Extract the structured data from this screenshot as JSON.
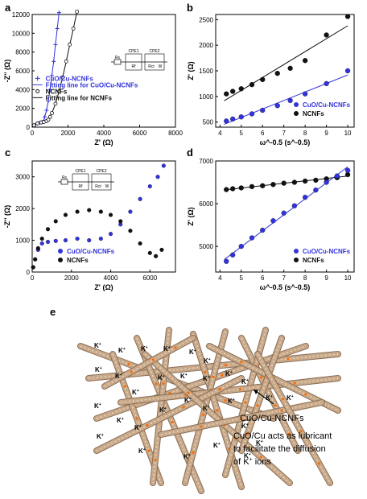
{
  "chart_data": [
    {
      "panel": "a",
      "type": "scatter",
      "xlabel": "Z' (Ω)",
      "ylabel": "-Z'' (Ω)",
      "xlim": [
        0,
        8000
      ],
      "ylim": [
        0,
        12000
      ],
      "xticks": [
        "0",
        "2000",
        "4000",
        "6000",
        "8000"
      ],
      "yticks": [
        "0",
        "2000",
        "4000",
        "6000",
        "8000",
        "10000",
        "12000"
      ],
      "inset": {
        "labels": [
          "CPE1",
          "CPE2",
          "Rs",
          "Rf",
          "Rct",
          "W"
        ]
      },
      "legend": [
        "CuO/Cu-NCNFs",
        "Fitting line for CuO/Cu-NCNFs",
        "NCNFs",
        "Fitting line for NCNFs"
      ],
      "series": [
        {
          "name": "CuO/Cu-NCNFs",
          "color": "#3333dd",
          "x": [
            100,
            200,
            300,
            400,
            500,
            600,
            650,
            700,
            800,
            900,
            1000,
            1100,
            1200,
            1300,
            1400,
            1500
          ],
          "y": [
            200,
            300,
            400,
            450,
            500,
            550,
            700,
            1100,
            1800,
            2800,
            4000,
            5500,
            7000,
            8800,
            10500,
            12200
          ]
        },
        {
          "name": "NCNFs",
          "color": "#111111",
          "x": [
            100,
            300,
            500,
            650,
            800,
            900,
            1000,
            1100,
            1300,
            1500,
            1700,
            1900,
            2100,
            2300,
            2500
          ],
          "y": [
            200,
            400,
            500,
            550,
            650,
            800,
            1100,
            1500,
            2500,
            3800,
            5300,
            7000,
            8800,
            10500,
            12300
          ]
        }
      ]
    },
    {
      "panel": "b",
      "type": "scatter",
      "xlabel": "ω^-0.5 (s^-0.5)",
      "ylabel": "Z' (Ω)",
      "xlim": [
        3.8,
        10.3
      ],
      "ylim": [
        400,
        2600
      ],
      "xticks": [
        "4",
        "5",
        "6",
        "7",
        "8",
        "9",
        "10"
      ],
      "yticks": [
        "500",
        "1000",
        "1500",
        "2000",
        "2500"
      ],
      "legend": [
        "CuO/Cu-NCNFs",
        "NCNFs"
      ],
      "series": [
        {
          "name": "NCNFs",
          "color": "#111111",
          "x": [
            4.3,
            4.6,
            5.0,
            5.5,
            6.0,
            6.7,
            7.3,
            8.0,
            9.0,
            10.0
          ],
          "y": [
            1050,
            1100,
            1150,
            1230,
            1330,
            1450,
            1550,
            1700,
            2200,
            2560
          ]
        },
        {
          "name": "CuO/Cu-NCNFs",
          "color": "#3333dd",
          "x": [
            4.3,
            4.6,
            5.0,
            5.5,
            6.0,
            6.7,
            7.3,
            8.0,
            9.0,
            10.0
          ],
          "y": [
            520,
            560,
            600,
            660,
            730,
            820,
            920,
            1050,
            1250,
            1500
          ]
        }
      ]
    },
    {
      "panel": "c",
      "type": "scatter",
      "xlabel": "Z' (Ω)",
      "ylabel": "-Z'' (Ω)",
      "xlim": [
        0,
        7300
      ],
      "ylim": [
        0,
        3500
      ],
      "xticks": [
        "0",
        "2000",
        "4000",
        "6000"
      ],
      "yticks": [
        "0",
        "1000",
        "2000",
        "3000"
      ],
      "inset": {
        "labels": [
          "CPE1",
          "CPE2",
          "Rs",
          "Rf",
          "Rct",
          "W"
        ]
      },
      "legend": [
        "CuO/Cu-NCNFs",
        "NCNFs"
      ],
      "series": [
        {
          "name": "CuO/Cu-NCNFs",
          "color": "#3333dd",
          "x": [
            50,
            150,
            300,
            500,
            800,
            1200,
            1700,
            2300,
            2900,
            3500,
            4000,
            4500,
            5000,
            5500,
            6000,
            6400,
            6700
          ],
          "y": [
            150,
            400,
            700,
            900,
            950,
            980,
            1000,
            1050,
            1000,
            1050,
            1200,
            1500,
            1900,
            2300,
            2700,
            3000,
            3350
          ]
        },
        {
          "name": "NCNFs",
          "color": "#111111",
          "x": [
            50,
            150,
            300,
            500,
            800,
            1200,
            1700,
            2300,
            2900,
            3500,
            4000,
            4500,
            5000,
            5500,
            6000,
            6300,
            6600
          ],
          "y": [
            150,
            400,
            750,
            1050,
            1350,
            1600,
            1800,
            1900,
            1950,
            1900,
            1800,
            1600,
            1300,
            900,
            600,
            500,
            700
          ]
        }
      ]
    },
    {
      "panel": "d",
      "type": "scatter",
      "xlabel": "ω^-0.5 (s^-0.5)",
      "ylabel": "Z' (Ω)",
      "xlim": [
        3.8,
        10.3
      ],
      "ylim": [
        4400,
        7000
      ],
      "xticks": [
        "4",
        "5",
        "6",
        "7",
        "8",
        "9",
        "10"
      ],
      "yticks": [
        "5000",
        "6000",
        "7000"
      ],
      "legend": [
        "CuO/Cu-NCNFs",
        "NCNFs"
      ],
      "series": [
        {
          "name": "NCNFs",
          "color": "#111111",
          "x": [
            4.3,
            4.6,
            5.0,
            5.5,
            6.0,
            6.5,
            7.0,
            7.5,
            8.0,
            8.5,
            9.0,
            9.5,
            10.0
          ],
          "y": [
            6330,
            6350,
            6370,
            6400,
            6420,
            6450,
            6480,
            6500,
            6530,
            6550,
            6580,
            6610,
            6680
          ]
        },
        {
          "name": "CuO/Cu-NCNFs",
          "color": "#3333dd",
          "x": [
            4.3,
            4.6,
            5.0,
            5.5,
            6.0,
            6.5,
            7.0,
            7.5,
            8.0,
            8.5,
            9.0,
            9.5,
            10.0
          ],
          "y": [
            4650,
            4800,
            5000,
            5200,
            5380,
            5600,
            5780,
            5950,
            6150,
            6320,
            6500,
            6650,
            6780
          ]
        }
      ]
    }
  ],
  "panel_e": {
    "label": "e",
    "caption_line1": "CuO/Cu-NCNFs",
    "caption_line2": "CuO/Cu acts as lubricant",
    "caption_line3": "to facilitate the diffusion",
    "caption_line4": "of K+ ions",
    "ion_label": "K+",
    "fiber_color": "#c8a98a",
    "dot_color": "#ff6a00"
  }
}
